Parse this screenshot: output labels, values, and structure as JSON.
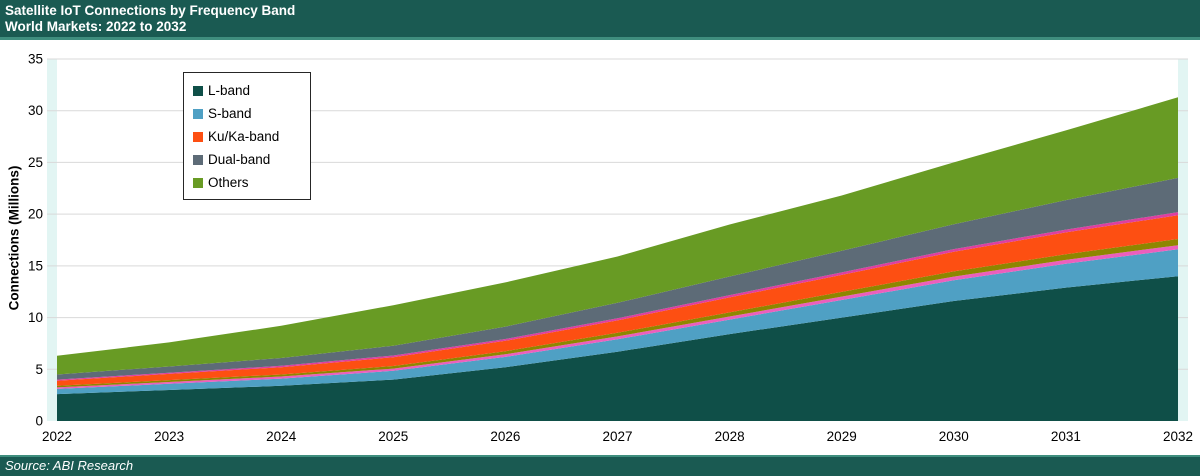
{
  "header": {
    "title_line1": "Satellite IoT Connections by Frequency Band",
    "title_line2": "World Markets: 2022 to 2032",
    "bar_color": "#1A5A52",
    "accent_color": "#3F8E7E"
  },
  "footer": {
    "source": "Source: ABI Research"
  },
  "chart_data": {
    "type": "area",
    "stacked": true,
    "title": "Satellite IoT Connections by Frequency Band",
    "subtitle": "World Markets: 2022 to 2032",
    "xlabel": "",
    "ylabel": "Connections (Millions)",
    "ylim": [
      0,
      35
    ],
    "yticks": [
      0,
      5,
      10,
      15,
      20,
      25,
      30,
      35
    ],
    "grid": "horizontal",
    "gridline_color": "#D9D9D9",
    "plot_gutter_color": "#E2F5F3",
    "legend_position": "top-left",
    "years": [
      2022,
      2023,
      2024,
      2025,
      2026,
      2027,
      2028,
      2029,
      2030,
      2031,
      2032
    ],
    "series": [
      {
        "name": "L-band",
        "in_legend": true,
        "color": "#0F4F48",
        "values": [
          2.6,
          3.0,
          3.4,
          4.0,
          5.2,
          6.7,
          8.4,
          10.0,
          11.6,
          12.9,
          14.0
        ]
      },
      {
        "name": "S-band",
        "in_legend": true,
        "color": "#4FA0C4",
        "values": [
          0.5,
          0.6,
          0.7,
          0.85,
          1.0,
          1.2,
          1.4,
          1.7,
          2.0,
          2.3,
          2.6
        ]
      },
      {
        "name": "unlabeled-pink",
        "in_legend": false,
        "color": "#EC5FBD",
        "values": [
          0.15,
          0.17,
          0.2,
          0.22,
          0.25,
          0.28,
          0.3,
          0.33,
          0.36,
          0.38,
          0.4
        ]
      },
      {
        "name": "unlabeled-olive",
        "in_legend": false,
        "color": "#8E8600",
        "values": [
          0.15,
          0.18,
          0.2,
          0.25,
          0.3,
          0.35,
          0.4,
          0.45,
          0.5,
          0.55,
          0.6
        ]
      },
      {
        "name": "Ku/Ka-band",
        "in_legend": true,
        "color": "#FD4F12",
        "values": [
          0.5,
          0.6,
          0.7,
          0.85,
          1.0,
          1.2,
          1.45,
          1.65,
          1.9,
          2.1,
          2.3
        ]
      },
      {
        "name": "unlabeled-magenta",
        "in_legend": false,
        "color": "#DE3FA0",
        "values": [
          0.1,
          0.12,
          0.14,
          0.16,
          0.18,
          0.2,
          0.22,
          0.24,
          0.26,
          0.28,
          0.3
        ]
      },
      {
        "name": "Dual-band",
        "in_legend": true,
        "color": "#5D6B77",
        "values": [
          0.5,
          0.6,
          0.75,
          0.95,
          1.2,
          1.5,
          1.8,
          2.1,
          2.4,
          2.85,
          3.3
        ]
      },
      {
        "name": "Others",
        "in_legend": true,
        "color": "#689B24",
        "values": [
          1.8,
          2.33,
          3.11,
          3.92,
          4.27,
          4.47,
          5.03,
          5.33,
          5.98,
          6.74,
          7.8
        ]
      }
    ],
    "totals": [
      6.3,
      7.6,
      9.2,
      11.2,
      13.4,
      15.9,
      19.0,
      21.8,
      25.0,
      28.1,
      31.3
    ]
  }
}
